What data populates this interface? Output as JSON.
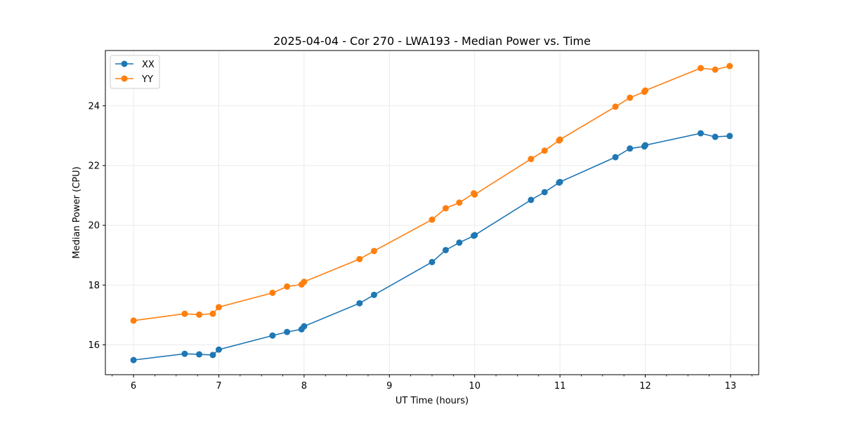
{
  "chart_data": {
    "type": "line",
    "title": "2025-04-04 - Cor 270 - LWA193 - Median Power vs. Time",
    "xlabel": "UT Time (hours)",
    "ylabel": "Median Power (CPU)",
    "xlim": [
      5.67,
      13.33
    ],
    "ylim": [
      15.0,
      25.85
    ],
    "xticks": [
      6,
      7,
      8,
      9,
      10,
      11,
      12,
      13
    ],
    "xtick_labels": [
      "6",
      "7",
      "8",
      "9",
      "10",
      "11",
      "12",
      "13"
    ],
    "yticks": [
      16,
      18,
      20,
      22,
      24
    ],
    "ytick_labels": [
      "16",
      "18",
      "20",
      "22",
      "24"
    ],
    "grid": true,
    "legend_position": "top-left",
    "series": [
      {
        "name": "XX",
        "color": "#1f77b4",
        "x": [
          6.0,
          6.6,
          6.77,
          6.93,
          7.0,
          7.63,
          7.8,
          7.97,
          8.0,
          8.65,
          8.82,
          9.5,
          9.66,
          9.82,
          9.99,
          10.0,
          10.66,
          10.82,
          10.99,
          11.0,
          11.65,
          11.82,
          11.99,
          12.0,
          12.65,
          12.82,
          12.99
        ],
        "y": [
          15.49,
          15.7,
          15.68,
          15.66,
          15.84,
          16.31,
          16.43,
          16.52,
          16.62,
          17.39,
          17.67,
          18.77,
          19.17,
          19.42,
          19.65,
          19.67,
          20.85,
          21.11,
          21.43,
          21.45,
          22.28,
          22.57,
          22.64,
          22.68,
          23.08,
          22.96,
          22.99
        ]
      },
      {
        "name": "YY",
        "color": "#ff7f0e",
        "x": [
          6.0,
          6.6,
          6.77,
          6.93,
          7.0,
          7.63,
          7.8,
          7.97,
          8.0,
          8.65,
          8.82,
          9.5,
          9.66,
          9.82,
          9.99,
          10.0,
          10.66,
          10.82,
          10.99,
          11.0,
          11.65,
          11.82,
          11.99,
          12.0,
          12.65,
          12.82,
          12.99
        ],
        "y": [
          16.81,
          17.04,
          17.01,
          17.04,
          17.26,
          17.74,
          17.95,
          18.02,
          18.11,
          18.87,
          19.14,
          20.19,
          20.57,
          20.76,
          21.07,
          21.03,
          22.22,
          22.5,
          22.84,
          22.87,
          23.97,
          24.27,
          24.47,
          24.51,
          25.26,
          25.21,
          25.33
        ]
      }
    ]
  }
}
